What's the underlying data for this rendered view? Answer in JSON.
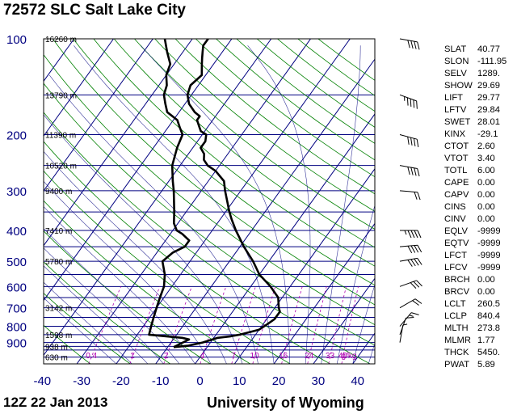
{
  "header": {
    "title": "72572 SLC Salt Lake City"
  },
  "footer": {
    "time": "12Z 22 Jan 2013",
    "source": "University of Wyoming"
  },
  "indices": [
    {
      "name": "SLAT",
      "value": "40.77"
    },
    {
      "name": "SLON",
      "value": "-111.95"
    },
    {
      "name": "SELV",
      "value": "1289."
    },
    {
      "name": "SHOW",
      "value": "29.69"
    },
    {
      "name": "LIFT",
      "value": "29.77"
    },
    {
      "name": "LFTV",
      "value": "29.84"
    },
    {
      "name": "SWET",
      "value": "28.01"
    },
    {
      "name": "KINX",
      "value": "-29.1"
    },
    {
      "name": "CTOT",
      "value": "2.60"
    },
    {
      "name": "VTOT",
      "value": "3.40"
    },
    {
      "name": "TOTL",
      "value": "6.00"
    },
    {
      "name": "CAPE",
      "value": "0.00"
    },
    {
      "name": "CAPV",
      "value": "0.00"
    },
    {
      "name": "CINS",
      "value": "0.00"
    },
    {
      "name": "CINV",
      "value": "0.00"
    },
    {
      "name": "EQLV",
      "value": "-9999"
    },
    {
      "name": "EQTV",
      "value": "-9999"
    },
    {
      "name": "LFCT",
      "value": "-9999"
    },
    {
      "name": "LFCV",
      "value": "-9999"
    },
    {
      "name": "BRCH",
      "value": "0.00"
    },
    {
      "name": "BRCV",
      "value": "0.00"
    },
    {
      "name": "LCLT",
      "value": "260.5"
    },
    {
      "name": "LCLP",
      "value": "840.4"
    },
    {
      "name": "MLTH",
      "value": "273.8"
    },
    {
      "name": "MLMR",
      "value": "1.77"
    },
    {
      "name": "THCK",
      "value": "5450."
    },
    {
      "name": "PWAT",
      "value": "5.89"
    }
  ],
  "chart_data": {
    "type": "line",
    "subtype": "skew-t log-p",
    "y_axis": {
      "scale": "log",
      "unit": "hPa",
      "range": [
        1000,
        100
      ],
      "tick_labels": [
        "100",
        "200",
        "300",
        "400",
        "500",
        "600",
        "700",
        "800",
        "900"
      ],
      "ticks": [
        100,
        200,
        300,
        400,
        500,
        600,
        700,
        800,
        900
      ]
    },
    "x_axis": {
      "unit": "°C",
      "range": [
        -40,
        45
      ],
      "tick_labels": [
        "-40",
        "-30",
        "-20",
        "-10",
        "0",
        "10",
        "20",
        "30",
        "40"
      ],
      "ticks": [
        -40,
        -30,
        -20,
        -10,
        0,
        10,
        20,
        30,
        40
      ]
    },
    "height_labels": [
      {
        "label": "16260 m",
        "p": 100
      },
      {
        "label": "13790 m",
        "p": 150
      },
      {
        "label": "11390 m",
        "p": 200
      },
      {
        "label": "10520 m",
        "p": 250
      },
      {
        "label": "9400 m",
        "p": 300
      },
      {
        "label": "7410 m",
        "p": 400
      },
      {
        "label": "5780 m",
        "p": 500
      },
      {
        "label": "3142 m",
        "p": 700
      },
      {
        "label": "1598 m",
        "p": 850
      },
      {
        "label": "938 m",
        "p": 925
      },
      {
        "label": "630 m",
        "p": 1000
      }
    ],
    "mixing_ratio_labels": [
      "0.4",
      "1",
      "2",
      "4",
      "7",
      "10",
      "16",
      "24",
      "33",
      "40",
      "g/kg"
    ],
    "mixing_ratio_values": [
      0.4,
      1,
      2,
      4,
      7,
      10,
      16,
      24,
      33,
      40
    ],
    "series": [
      {
        "role": "temperature",
        "color": "#000000",
        "points": [
          [
            930,
            -8.5
          ],
          [
            920,
            -5
          ],
          [
            900,
            -2
          ],
          [
            880,
            0
          ],
          [
            870,
            1
          ],
          [
            860,
            4
          ],
          [
            850,
            6
          ],
          [
            820,
            10
          ],
          [
            790,
            11
          ],
          [
            760,
            12
          ],
          [
            720,
            12
          ],
          [
            700,
            11
          ],
          [
            650,
            9
          ],
          [
            600,
            5
          ],
          [
            550,
            0
          ],
          [
            500,
            -4
          ],
          [
            450,
            -9
          ],
          [
            400,
            -14
          ],
          [
            370,
            -17
          ],
          [
            350,
            -19
          ],
          [
            300,
            -24
          ],
          [
            280,
            -26
          ],
          [
            260,
            -30
          ],
          [
            250,
            -33
          ],
          [
            240,
            -35
          ],
          [
            230,
            -36
          ],
          [
            220,
            -38
          ],
          [
            210,
            -38
          ],
          [
            200,
            -39
          ],
          [
            195,
            -41
          ],
          [
            190,
            -42
          ],
          [
            180,
            -44
          ],
          [
            175,
            -44
          ],
          [
            170,
            -46
          ],
          [
            160,
            -49
          ],
          [
            150,
            -51
          ],
          [
            140,
            -52
          ],
          [
            130,
            -51
          ],
          [
            120,
            -53
          ],
          [
            115,
            -54
          ],
          [
            110,
            -55
          ],
          [
            105,
            -56
          ],
          [
            100,
            -56
          ]
        ]
      },
      {
        "role": "dewpoint",
        "color": "#000000",
        "points": [
          [
            930,
            -8.5
          ],
          [
            900,
            -7
          ],
          [
            880,
            -6
          ],
          [
            870,
            -8
          ],
          [
            850,
            -17
          ],
          [
            800,
            -18
          ],
          [
            750,
            -19
          ],
          [
            700,
            -20
          ],
          [
            650,
            -21
          ],
          [
            600,
            -22
          ],
          [
            550,
            -24
          ],
          [
            500,
            -27
          ],
          [
            470,
            -26
          ],
          [
            450,
            -24
          ],
          [
            430,
            -24
          ],
          [
            410,
            -27
          ],
          [
            400,
            -29
          ],
          [
            380,
            -31
          ],
          [
            350,
            -33
          ],
          [
            300,
            -37
          ],
          [
            280,
            -39
          ],
          [
            250,
            -42
          ],
          [
            220,
            -44
          ],
          [
            200,
            -45
          ],
          [
            190,
            -47
          ],
          [
            180,
            -49
          ],
          [
            170,
            -53
          ],
          [
            160,
            -55
          ],
          [
            150,
            -57
          ],
          [
            140,
            -58
          ],
          [
            130,
            -60
          ],
          [
            120,
            -61
          ],
          [
            110,
            -64
          ],
          [
            100,
            -67
          ]
        ]
      }
    ],
    "wind_barbs": [
      {
        "p": 900,
        "dir": 190,
        "speed": 5
      },
      {
        "p": 850,
        "dir": 200,
        "speed": 10
      },
      {
        "p": 800,
        "dir": 220,
        "speed": 15
      },
      {
        "p": 700,
        "dir": 240,
        "speed": 20
      },
      {
        "p": 600,
        "dir": 250,
        "speed": 30
      },
      {
        "p": 500,
        "dir": 260,
        "speed": 40
      },
      {
        "p": 450,
        "dir": 265,
        "speed": 40
      },
      {
        "p": 400,
        "dir": 270,
        "speed": 45
      },
      {
        "p": 300,
        "dir": 275,
        "speed": 20
      },
      {
        "p": 250,
        "dir": 280,
        "speed": 40
      },
      {
        "p": 200,
        "dir": 285,
        "speed": 40
      },
      {
        "p": 150,
        "dir": 290,
        "speed": 45
      },
      {
        "p": 100,
        "dir": 280,
        "speed": 40
      }
    ],
    "grid": true
  }
}
